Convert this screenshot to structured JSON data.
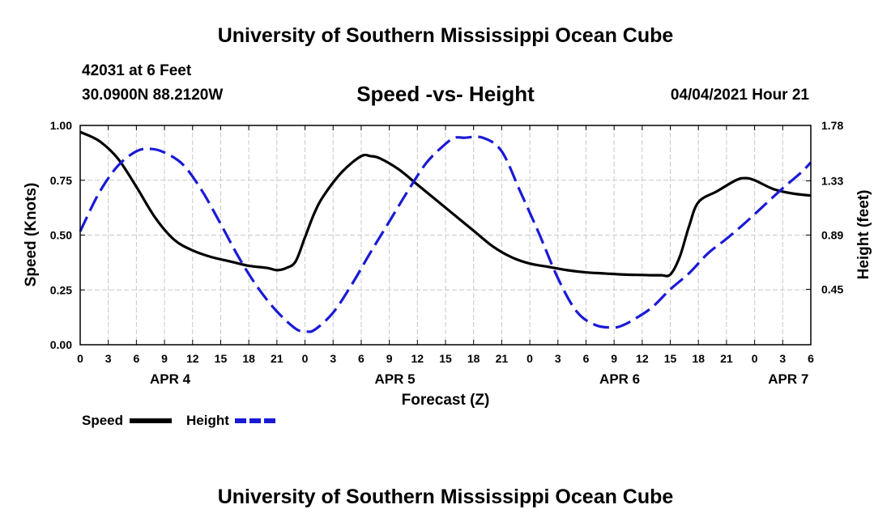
{
  "header": {
    "title": "University of Southern Mississippi Ocean Cube",
    "station": "42031 at 6 Feet",
    "coordinates": "30.0900N  88.2120W",
    "subtitle": "Speed -vs- Height",
    "datetime": "04/04/2021 Hour 21"
  },
  "footer": {
    "title": "University of Southern Mississippi Ocean Cube"
  },
  "chart_data": {
    "type": "line",
    "xlabel": "Forecast (Z)",
    "ylabel": "Speed (Knots)",
    "y2label": "Height (feet)",
    "xlim": [
      0,
      78
    ],
    "ylim": [
      0,
      1.0
    ],
    "y2lim": [
      0.0,
      1.78
    ],
    "x_ticks": [
      0,
      3,
      6,
      9,
      12,
      15,
      18,
      21,
      24,
      27,
      30,
      33,
      36,
      39,
      42,
      45,
      48,
      51,
      54,
      57,
      60,
      63,
      66,
      69,
      72,
      75,
      78
    ],
    "x_tick_labels": [
      "0",
      "3",
      "6",
      "9",
      "12",
      "15",
      "18",
      "21",
      "0",
      "3",
      "6",
      "9",
      "12",
      "15",
      "18",
      "21",
      "0",
      "3",
      "6",
      "9",
      "12",
      "15",
      "18",
      "21",
      "0",
      "3",
      "6"
    ],
    "y_ticks": [
      0.0,
      0.25,
      0.5,
      0.75,
      1.0
    ],
    "y_tick_labels": [
      "0.00",
      "0.25",
      "0.50",
      "0.75",
      "1.00"
    ],
    "y2_ticks": [
      0.45,
      0.89,
      1.33,
      1.78
    ],
    "y2_tick_labels": [
      "0.45",
      "0.89",
      "1.33",
      "1.78"
    ],
    "date_labels": [
      {
        "label": "APR 4",
        "x": 9.6
      },
      {
        "label": "APR 5",
        "x": 33.6
      },
      {
        "label": "APR 6",
        "x": 57.6
      },
      {
        "label": "APR 7",
        "x": 75.6
      }
    ],
    "grid": true,
    "series": [
      {
        "name": "Speed",
        "axis": "left",
        "color": "#000000",
        "style": "solid",
        "x": [
          0,
          2,
          4,
          6,
          8,
          10,
          12,
          14,
          16,
          18,
          20,
          21,
          22,
          23,
          24,
          25,
          26,
          28,
          30,
          31,
          32,
          34,
          36,
          38,
          40,
          42,
          44,
          46,
          48,
          50,
          52,
          54,
          56,
          58,
          60,
          61,
          62,
          63,
          64,
          65,
          66,
          68,
          70,
          71,
          72,
          74,
          76,
          78
        ],
        "values": [
          0.97,
          0.93,
          0.85,
          0.72,
          0.58,
          0.48,
          0.43,
          0.4,
          0.38,
          0.36,
          0.35,
          0.34,
          0.35,
          0.38,
          0.49,
          0.6,
          0.68,
          0.79,
          0.86,
          0.86,
          0.85,
          0.8,
          0.73,
          0.66,
          0.59,
          0.52,
          0.45,
          0.4,
          0.37,
          0.355,
          0.34,
          0.33,
          0.325,
          0.32,
          0.318,
          0.317,
          0.317,
          0.32,
          0.4,
          0.54,
          0.65,
          0.7,
          0.75,
          0.76,
          0.75,
          0.71,
          0.69,
          0.68
        ]
      },
      {
        "name": "Height",
        "axis": "right",
        "color": "#1a1ad6",
        "style": "dashed",
        "x": [
          0,
          2,
          4,
          6,
          7.5,
          9,
          11,
          13,
          15,
          17,
          19,
          21,
          23,
          24,
          25,
          27,
          29,
          31,
          33,
          35,
          37,
          39,
          40,
          41,
          43,
          45,
          47,
          49,
          51,
          53,
          55,
          57,
          58,
          59,
          61,
          63,
          65,
          67,
          69,
          71,
          73,
          75,
          77,
          78
        ],
        "values": [
          0.92,
          1.23,
          1.45,
          1.57,
          1.59,
          1.56,
          1.46,
          1.25,
          0.98,
          0.7,
          0.46,
          0.27,
          0.13,
          0.11,
          0.12,
          0.26,
          0.49,
          0.75,
          1.0,
          1.25,
          1.48,
          1.63,
          1.68,
          1.68,
          1.68,
          1.57,
          1.24,
          0.9,
          0.54,
          0.27,
          0.16,
          0.14,
          0.16,
          0.2,
          0.3,
          0.45,
          0.58,
          0.74,
          0.86,
          0.99,
          1.13,
          1.27,
          1.4,
          1.48
        ]
      }
    ]
  }
}
